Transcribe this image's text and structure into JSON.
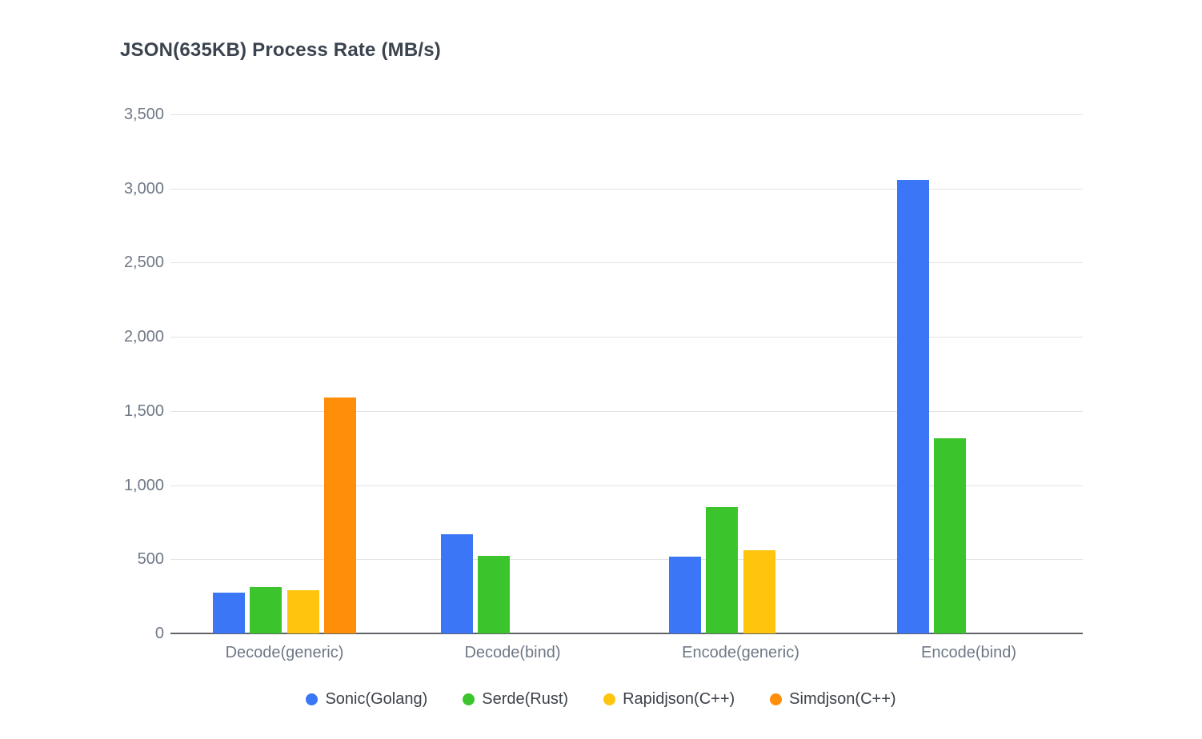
{
  "chart": {
    "background": "#ffffff",
    "gridline_color": "#e3e3e3",
    "axis_line_color": "#606367",
    "title_color": "#3a434e",
    "tick_label_color": "#6f7887",
    "legend_text_color": "#3c4149"
  },
  "chart_data": {
    "type": "bar",
    "title": "JSON(635KB) Process Rate (MB/s)",
    "xlabel": "",
    "ylabel": "",
    "ylim": [
      0,
      3500
    ],
    "grid": true,
    "legend_position": "bottom",
    "categories": [
      "Decode(generic)",
      "Decode(bind)",
      "Encode(generic)",
      "Encode(bind)"
    ],
    "yticks": [
      {
        "value": 0,
        "label": "0"
      },
      {
        "value": 500,
        "label": "500"
      },
      {
        "value": 1000,
        "label": "1,000"
      },
      {
        "value": 1500,
        "label": "1,500"
      },
      {
        "value": 2000,
        "label": "2,000"
      },
      {
        "value": 2500,
        "label": "2,500"
      },
      {
        "value": 3000,
        "label": "3,000"
      },
      {
        "value": 3500,
        "label": "3,500"
      }
    ],
    "series": [
      {
        "name": "Sonic(Golang)",
        "color": "#3B76F6",
        "values": [
          275,
          670,
          520,
          3060
        ]
      },
      {
        "name": "Serde(Rust)",
        "color": "#3BC42C",
        "values": [
          315,
          525,
          855,
          1315
        ]
      },
      {
        "name": "Rapidjson(C++)",
        "color": "#FFC40D",
        "values": [
          290,
          null,
          560,
          null
        ]
      },
      {
        "name": "Simdjson(C++)",
        "color": "#FF8E09",
        "values": [
          1590,
          null,
          null,
          null
        ]
      }
    ]
  }
}
